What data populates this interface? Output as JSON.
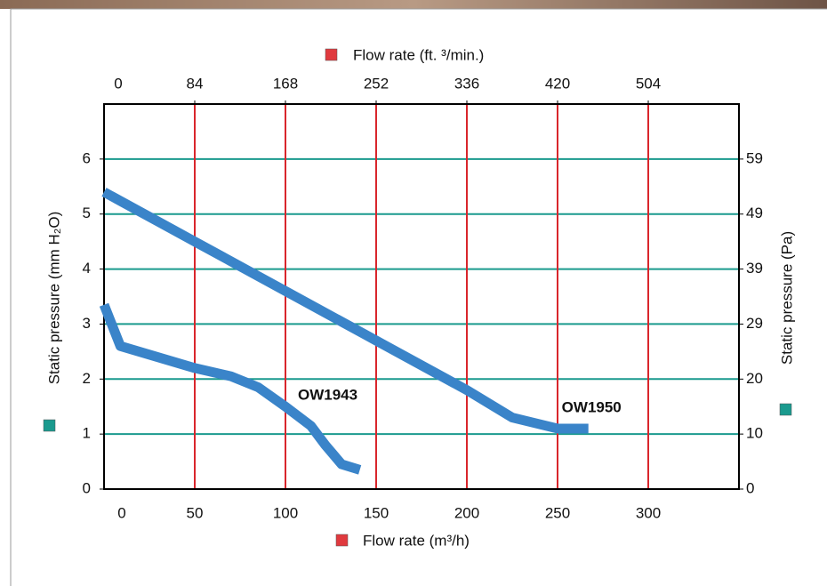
{
  "chart_data": {
    "type": "line",
    "x_title": "Flow rate (m³/h)",
    "x2_title": "Flow rate (ft. ³/min.)",
    "y_title": "Static pressure (mm H₂O)",
    "y2_title": "Static pressure (Pa)",
    "xlim": [
      0,
      350
    ],
    "xticks": [
      0,
      50,
      100,
      150,
      200,
      250,
      300
    ],
    "x2lim": [
      0,
      588
    ],
    "x2ticks": [
      0,
      84,
      168,
      252,
      336,
      420,
      504
    ],
    "ylim": [
      0,
      7
    ],
    "yticks": [
      0,
      1,
      2,
      3,
      4,
      5,
      6
    ],
    "y2lim": [
      0,
      68.65
    ],
    "y2ticks": [
      0,
      {
        "value": 9.81,
        "label": "10"
      },
      {
        "value": 19.61,
        "label": "20"
      },
      {
        "value": 29.42,
        "label": "29"
      },
      {
        "value": 39.23,
        "label": "39"
      },
      {
        "value": 49.03,
        "label": "49"
      },
      {
        "value": 58.84,
        "label": "59"
      }
    ],
    "grid": true,
    "x_grid_color": "#d9262c",
    "y_grid_color": "#1a9a8e",
    "series": [
      {
        "name": "OW1943",
        "color": "#3a84c9",
        "x": [
          0,
          9,
          50,
          70,
          85,
          100,
          114,
          122,
          131,
          141
        ],
        "values": [
          3.35,
          2.6,
          2.2,
          2.05,
          1.85,
          1.5,
          1.15,
          0.8,
          0.45,
          0.35
        ]
      },
      {
        "name": "OW1950",
        "color": "#3a84c9",
        "x": [
          0,
          50,
          100,
          150,
          200,
          225,
          250,
          267
        ],
        "values": [
          5.4,
          4.5,
          3.6,
          2.7,
          1.8,
          1.3,
          1.1,
          1.1
        ]
      }
    ]
  }
}
